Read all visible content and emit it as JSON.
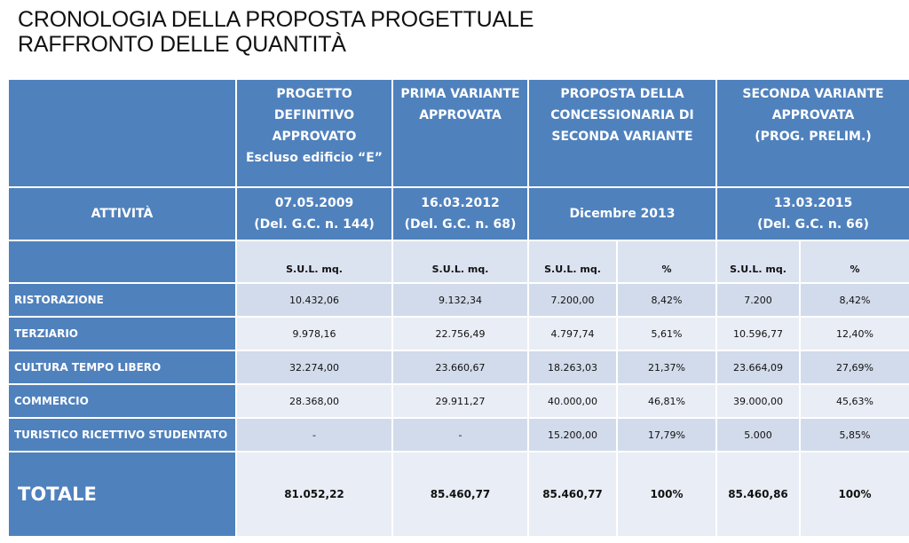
{
  "title": {
    "line1": "CRONOLOGIA DELLA PROPOSTA PROGETTUALE",
    "line2": "RAFFRONTO DELLE QUANTITÀ"
  },
  "table": {
    "header_projects": [
      [
        "PROGETTO",
        "DEFINITIVO",
        "APPROVATO",
        "Escluso edificio “E”"
      ],
      [
        "PRIMA VARIANTE",
        "APPROVATA"
      ],
      [
        "PROPOSTA DELLA",
        "CONCESSIONARIA DI",
        "SECONDA VARIANTE"
      ],
      [
        "SECONDA VARIANTE",
        "APPROVATA",
        "(PROG. PRELIM.)"
      ]
    ],
    "activity_label": "ATTIVITÀ",
    "dates": [
      [
        "07.05.2009",
        "(Del. G.C. n. 144)"
      ],
      [
        "16.03.2012",
        "(Del. G.C. n. 68)"
      ],
      [
        "Dicembre 2013"
      ],
      [
        "13.03.2015",
        "(Del. G.C. n. 66)"
      ]
    ],
    "unit_headers": [
      "S.U.L. mq.",
      "S.U.L. mq.",
      "S.U.L. mq.",
      "%",
      "S.U.L. mq.",
      "%"
    ],
    "rows": [
      {
        "label": "RISTORAZIONE",
        "values": [
          "10.432,06",
          "9.132,34",
          "7.200,00",
          "8,42%",
          "7.200",
          "8,42%"
        ]
      },
      {
        "label": "TERZIARIO",
        "values": [
          "9.978,16",
          "22.756,49",
          "4.797,74",
          "5,61%",
          "10.596,77",
          "12,40%"
        ]
      },
      {
        "label": "CULTURA TEMPO LIBERO",
        "values": [
          "32.274,00",
          "23.660,67",
          "18.263,03",
          "21,37%",
          "23.664,09",
          "27,69%"
        ]
      },
      {
        "label": "COMMERCIO",
        "values": [
          "28.368,00",
          "29.911,27",
          "40.000,00",
          "46,81%",
          "39.000,00",
          "45,63%"
        ]
      },
      {
        "label": "TURISTICO RICETTIVO STUDENTATO",
        "values": [
          "-",
          "-",
          "15.200,00",
          "17,79%",
          "5.000",
          "5,85%"
        ]
      }
    ],
    "total": {
      "label": "TOTALE",
      "values": [
        "81.052,22",
        "85.460,77",
        "85.460,77",
        "100%",
        "85.460,86",
        "100%"
      ]
    }
  },
  "colors": {
    "header_blue": "#4f81bd",
    "row_dark": "#d2dbeb",
    "row_light": "#e9edf5"
  }
}
